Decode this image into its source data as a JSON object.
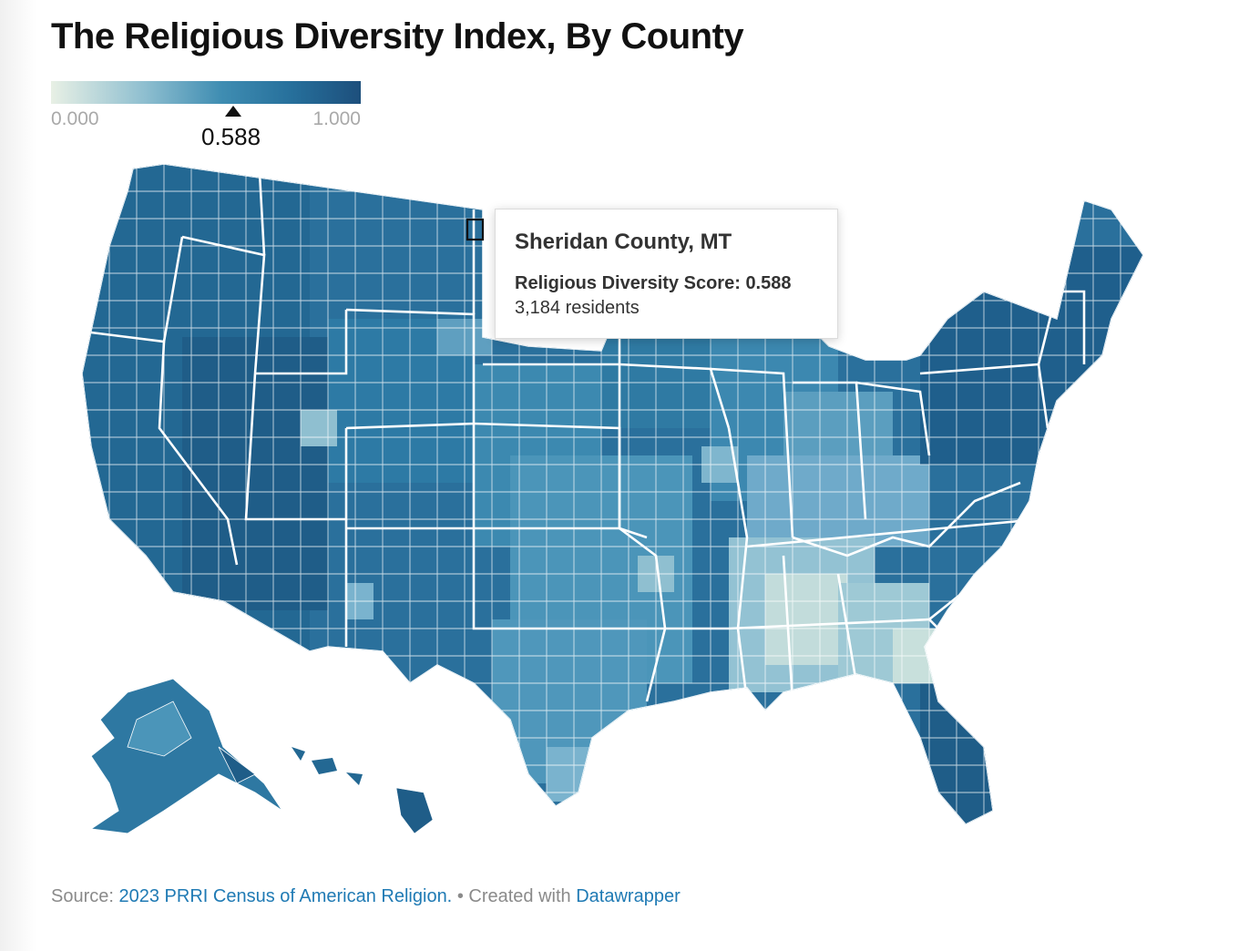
{
  "title": "The Religious Diversity Index, By County",
  "legend": {
    "min_label": "0.000",
    "max_label": "1.000",
    "current_value_label": "0.588",
    "current_value": 0.588,
    "colors": [
      "#e8f0e5",
      "#8fbfd0",
      "#3f8db2",
      "#266f9b",
      "#1d4f7c"
    ]
  },
  "tooltip": {
    "county": "Sheridan County, MT",
    "score_label": "Religious Diversity Score:",
    "score_value": "0.588",
    "residents": "3,184 residents"
  },
  "footer": {
    "source_label": "Source:",
    "source_link": "2023 PRRI Census of American Religion.",
    "separator": "•",
    "created_label": "Created with",
    "created_link": "Datawrapper"
  },
  "map": {
    "highlighted_county": "Sheridan County, MT",
    "palette": {
      "darkest": "#1d4f7c",
      "dark": "#266f9b",
      "mid": "#3f8db2",
      "light": "#8fbfd0",
      "lightest": "#d8e6df",
      "border": "#ffffff"
    }
  }
}
